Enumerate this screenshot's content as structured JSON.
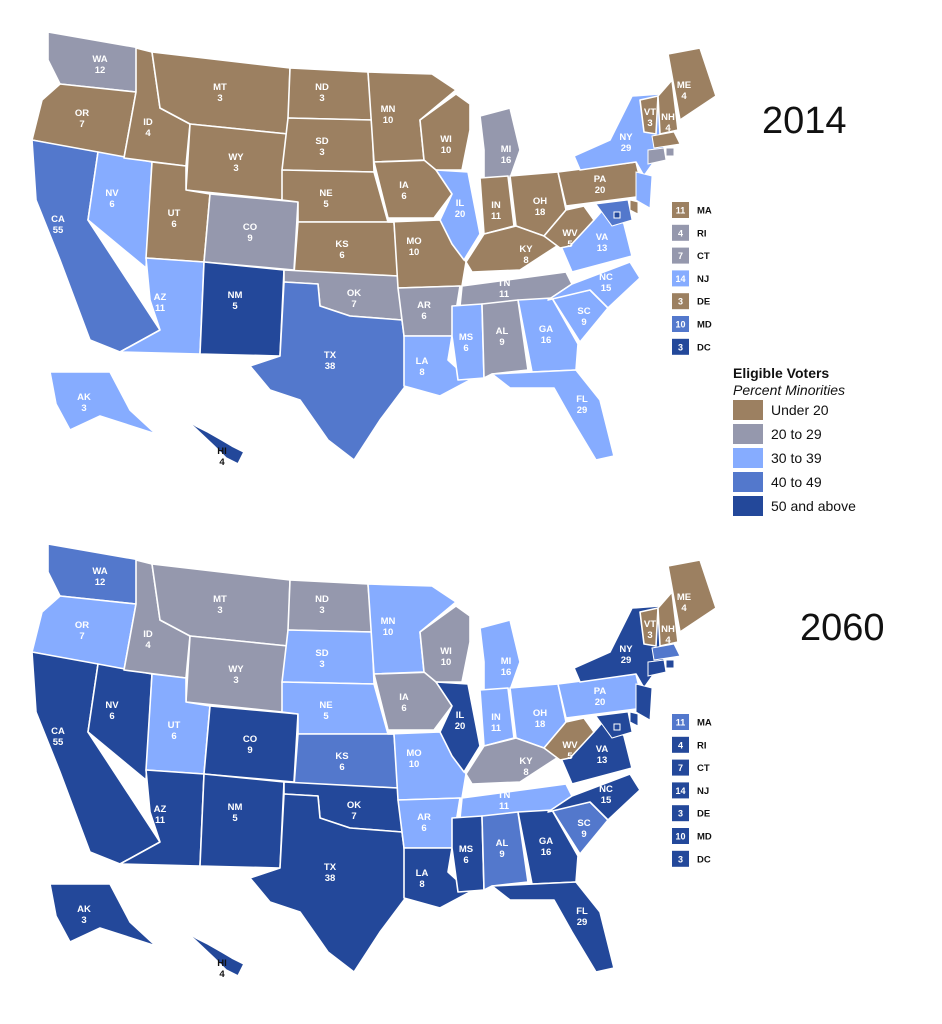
{
  "colors": {
    "under20": "#9c8061",
    "20to29": "#9598ad",
    "30to39": "#86acff",
    "40to49": "#5378cc",
    "50plus": "#23489a",
    "border": "#ffffff",
    "label": "#ffffff",
    "hi_label": "#111111"
  },
  "legend": {
    "title": "Eligible Voters",
    "subtitle": "Percent Minorities",
    "items": [
      {
        "key": "under20",
        "label": "Under 20"
      },
      {
        "key": "20to29",
        "label": "20 to 29"
      },
      {
        "key": "30to39",
        "label": "30 to 39"
      },
      {
        "key": "40to49",
        "label": "40 to 49"
      },
      {
        "key": "50plus",
        "label": "50 and above"
      }
    ]
  },
  "maps": [
    {
      "year": "2014",
      "states": [
        {
          "abbr": "WA",
          "votes": "12",
          "cat": "20to29"
        },
        {
          "abbr": "OR",
          "votes": "7",
          "cat": "under20"
        },
        {
          "abbr": "CA",
          "votes": "55",
          "cat": "40to49"
        },
        {
          "abbr": "NV",
          "votes": "6",
          "cat": "30to39"
        },
        {
          "abbr": "ID",
          "votes": "4",
          "cat": "under20"
        },
        {
          "abbr": "MT",
          "votes": "3",
          "cat": "under20"
        },
        {
          "abbr": "WY",
          "votes": "3",
          "cat": "under20"
        },
        {
          "abbr": "UT",
          "votes": "6",
          "cat": "under20"
        },
        {
          "abbr": "AZ",
          "votes": "11",
          "cat": "30to39"
        },
        {
          "abbr": "CO",
          "votes": "9",
          "cat": "20to29"
        },
        {
          "abbr": "NM",
          "votes": "5",
          "cat": "50plus"
        },
        {
          "abbr": "ND",
          "votes": "3",
          "cat": "under20"
        },
        {
          "abbr": "SD",
          "votes": "3",
          "cat": "under20"
        },
        {
          "abbr": "NE",
          "votes": "5",
          "cat": "under20"
        },
        {
          "abbr": "KS",
          "votes": "6",
          "cat": "under20"
        },
        {
          "abbr": "OK",
          "votes": "7",
          "cat": "20to29"
        },
        {
          "abbr": "TX",
          "votes": "38",
          "cat": "40to49"
        },
        {
          "abbr": "MN",
          "votes": "10",
          "cat": "under20"
        },
        {
          "abbr": "IA",
          "votes": "6",
          "cat": "under20"
        },
        {
          "abbr": "MO",
          "votes": "10",
          "cat": "under20"
        },
        {
          "abbr": "AR",
          "votes": "6",
          "cat": "20to29"
        },
        {
          "abbr": "LA",
          "votes": "8",
          "cat": "30to39"
        },
        {
          "abbr": "WI",
          "votes": "10",
          "cat": "under20"
        },
        {
          "abbr": "IL",
          "votes": "20",
          "cat": "30to39"
        },
        {
          "abbr": "MI",
          "votes": "16",
          "cat": "20to29"
        },
        {
          "abbr": "IN",
          "votes": "11",
          "cat": "under20"
        },
        {
          "abbr": "OH",
          "votes": "18",
          "cat": "under20"
        },
        {
          "abbr": "KY",
          "votes": "8",
          "cat": "under20"
        },
        {
          "abbr": "TN",
          "votes": "11",
          "cat": "20to29"
        },
        {
          "abbr": "MS",
          "votes": "6",
          "cat": "30to39"
        },
        {
          "abbr": "AL",
          "votes": "9",
          "cat": "20to29"
        },
        {
          "abbr": "GA",
          "votes": "16",
          "cat": "30to39"
        },
        {
          "abbr": "FL",
          "votes": "29",
          "cat": "30to39"
        },
        {
          "abbr": "SC",
          "votes": "9",
          "cat": "30to39"
        },
        {
          "abbr": "NC",
          "votes": "15",
          "cat": "30to39"
        },
        {
          "abbr": "VA",
          "votes": "13",
          "cat": "30to39"
        },
        {
          "abbr": "WV",
          "votes": "5",
          "cat": "under20"
        },
        {
          "abbr": "PA",
          "votes": "20",
          "cat": "under20"
        },
        {
          "abbr": "NY",
          "votes": "29",
          "cat": "30to39"
        },
        {
          "abbr": "VT",
          "votes": "3",
          "cat": "under20"
        },
        {
          "abbr": "NH",
          "votes": "4",
          "cat": "under20"
        },
        {
          "abbr": "ME",
          "votes": "4",
          "cat": "under20"
        },
        {
          "abbr": "AK",
          "votes": "3",
          "cat": "30to39"
        },
        {
          "abbr": "HI",
          "votes": "4",
          "cat": "50plus"
        }
      ],
      "small_states": [
        {
          "abbr": "MA",
          "votes": "11",
          "cat": "under20"
        },
        {
          "abbr": "RI",
          "votes": "4",
          "cat": "20to29"
        },
        {
          "abbr": "CT",
          "votes": "7",
          "cat": "20to29"
        },
        {
          "abbr": "NJ",
          "votes": "14",
          "cat": "30to39"
        },
        {
          "abbr": "DE",
          "votes": "3",
          "cat": "under20"
        },
        {
          "abbr": "MD",
          "votes": "10",
          "cat": "40to49"
        },
        {
          "abbr": "DC",
          "votes": "3",
          "cat": "50plus"
        }
      ]
    },
    {
      "year": "2060",
      "states": [
        {
          "abbr": "WA",
          "votes": "12",
          "cat": "40to49"
        },
        {
          "abbr": "OR",
          "votes": "7",
          "cat": "30to39"
        },
        {
          "abbr": "CA",
          "votes": "55",
          "cat": "50plus"
        },
        {
          "abbr": "NV",
          "votes": "6",
          "cat": "50plus"
        },
        {
          "abbr": "ID",
          "votes": "4",
          "cat": "20to29"
        },
        {
          "abbr": "MT",
          "votes": "3",
          "cat": "20to29"
        },
        {
          "abbr": "WY",
          "votes": "3",
          "cat": "20to29"
        },
        {
          "abbr": "UT",
          "votes": "6",
          "cat": "30to39"
        },
        {
          "abbr": "AZ",
          "votes": "11",
          "cat": "50plus"
        },
        {
          "abbr": "CO",
          "votes": "9",
          "cat": "50plus"
        },
        {
          "abbr": "NM",
          "votes": "5",
          "cat": "50plus"
        },
        {
          "abbr": "ND",
          "votes": "3",
          "cat": "20to29"
        },
        {
          "abbr": "SD",
          "votes": "3",
          "cat": "30to39"
        },
        {
          "abbr": "NE",
          "votes": "5",
          "cat": "30to39"
        },
        {
          "abbr": "KS",
          "votes": "6",
          "cat": "40to49"
        },
        {
          "abbr": "OK",
          "votes": "7",
          "cat": "50plus"
        },
        {
          "abbr": "TX",
          "votes": "38",
          "cat": "50plus"
        },
        {
          "abbr": "MN",
          "votes": "10",
          "cat": "30to39"
        },
        {
          "abbr": "IA",
          "votes": "6",
          "cat": "20to29"
        },
        {
          "abbr": "MO",
          "votes": "10",
          "cat": "30to39"
        },
        {
          "abbr": "AR",
          "votes": "6",
          "cat": "30to39"
        },
        {
          "abbr": "LA",
          "votes": "8",
          "cat": "50plus"
        },
        {
          "abbr": "WI",
          "votes": "10",
          "cat": "20to29"
        },
        {
          "abbr": "IL",
          "votes": "20",
          "cat": "50plus"
        },
        {
          "abbr": "MI",
          "votes": "16",
          "cat": "30to39"
        },
        {
          "abbr": "IN",
          "votes": "11",
          "cat": "30to39"
        },
        {
          "abbr": "OH",
          "votes": "18",
          "cat": "30to39"
        },
        {
          "abbr": "KY",
          "votes": "8",
          "cat": "20to29"
        },
        {
          "abbr": "TN",
          "votes": "11",
          "cat": "30to39"
        },
        {
          "abbr": "MS",
          "votes": "6",
          "cat": "50plus"
        },
        {
          "abbr": "AL",
          "votes": "9",
          "cat": "40to49"
        },
        {
          "abbr": "GA",
          "votes": "16",
          "cat": "50plus"
        },
        {
          "abbr": "FL",
          "votes": "29",
          "cat": "50plus"
        },
        {
          "abbr": "SC",
          "votes": "9",
          "cat": "40to49"
        },
        {
          "abbr": "NC",
          "votes": "15",
          "cat": "50plus"
        },
        {
          "abbr": "VA",
          "votes": "13",
          "cat": "50plus"
        },
        {
          "abbr": "WV",
          "votes": "5",
          "cat": "under20"
        },
        {
          "abbr": "PA",
          "votes": "20",
          "cat": "30to39"
        },
        {
          "abbr": "NY",
          "votes": "29",
          "cat": "50plus"
        },
        {
          "abbr": "VT",
          "votes": "3",
          "cat": "under20"
        },
        {
          "abbr": "NH",
          "votes": "4",
          "cat": "under20"
        },
        {
          "abbr": "ME",
          "votes": "4",
          "cat": "under20"
        },
        {
          "abbr": "AK",
          "votes": "3",
          "cat": "50plus"
        },
        {
          "abbr": "HI",
          "votes": "4",
          "cat": "50plus"
        }
      ],
      "small_states": [
        {
          "abbr": "MA",
          "votes": "11",
          "cat": "40to49"
        },
        {
          "abbr": "RI",
          "votes": "4",
          "cat": "50plus"
        },
        {
          "abbr": "CT",
          "votes": "7",
          "cat": "50plus"
        },
        {
          "abbr": "NJ",
          "votes": "14",
          "cat": "50plus"
        },
        {
          "abbr": "DE",
          "votes": "3",
          "cat": "50plus"
        },
        {
          "abbr": "MD",
          "votes": "10",
          "cat": "50plus"
        },
        {
          "abbr": "DC",
          "votes": "3",
          "cat": "50plus"
        }
      ]
    }
  ]
}
